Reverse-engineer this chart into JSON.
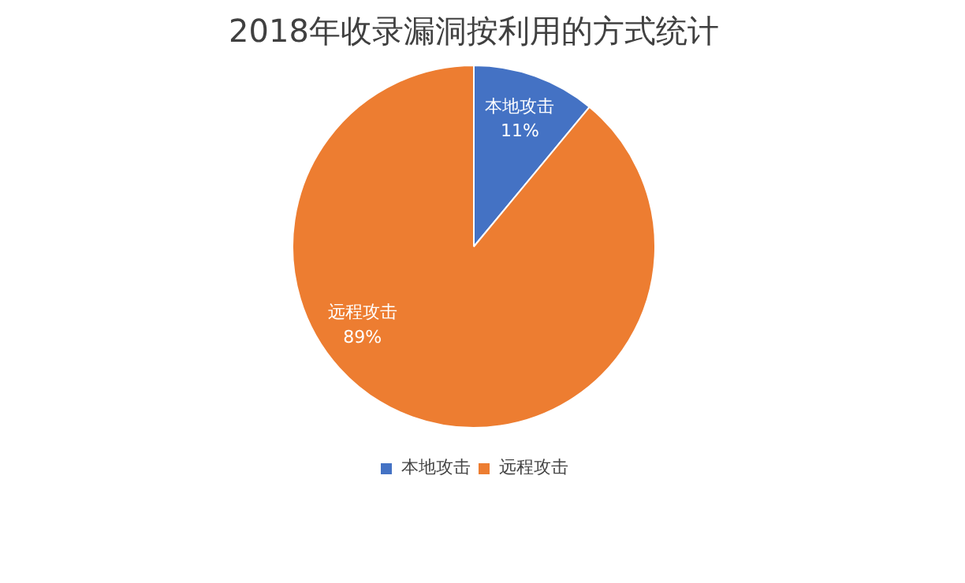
{
  "chart_data": {
    "type": "pie",
    "title": "2018年收录漏洞按利用的方式统计",
    "categories": [
      "本地攻击",
      "远程攻击"
    ],
    "values": [
      11,
      89
    ],
    "colors": [
      "#4472c4",
      "#ed7d31"
    ],
    "value_labels": [
      "11%",
      "89%"
    ],
    "legend": "bottom"
  }
}
